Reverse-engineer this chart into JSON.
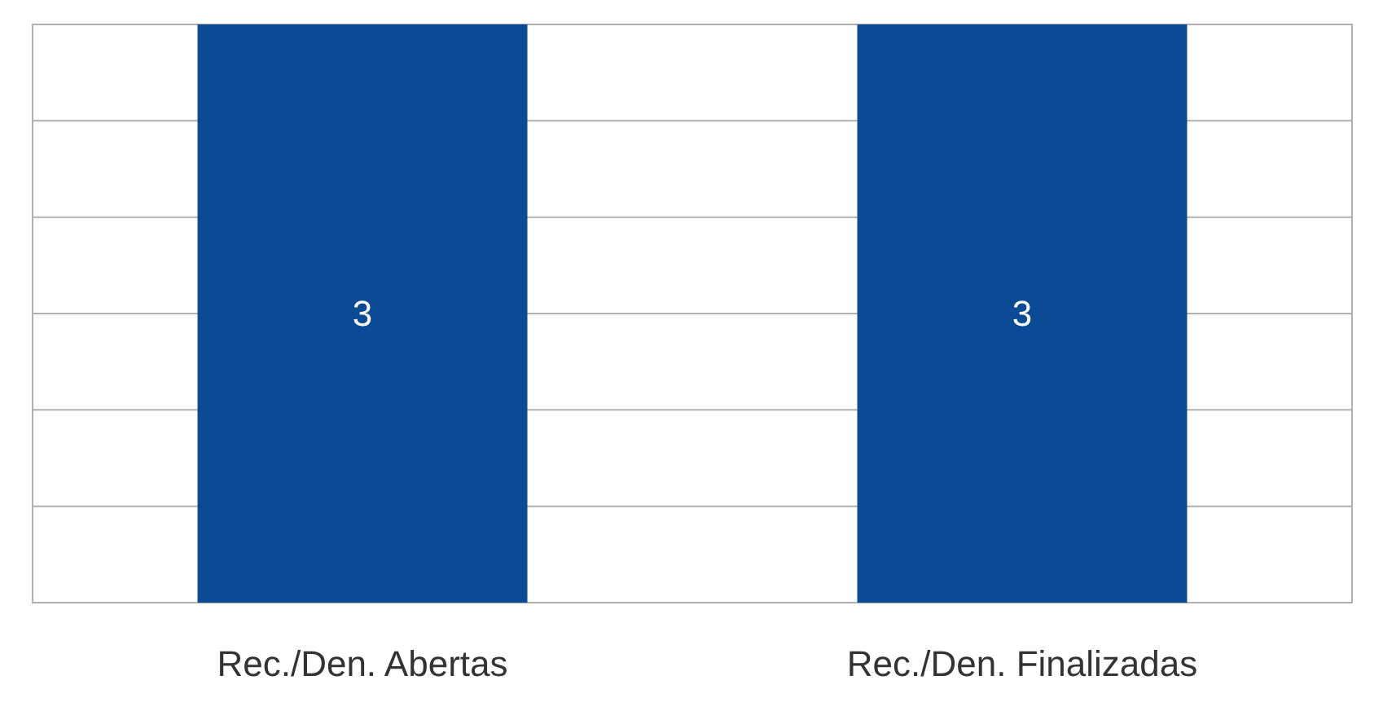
{
  "chart_data": {
    "type": "bar",
    "categories": [
      "Rec./Den. Abertas",
      "Rec./Den. Finalizadas"
    ],
    "values": [
      3,
      3
    ],
    "color": "#0b4a94",
    "data_labels": true,
    "grid": "y",
    "tick_labels": "x",
    "ylim": [
      0,
      3
    ],
    "yticks": [
      {
        "value": 0,
        "label": null
      },
      {
        "value": 0.5,
        "label": null
      },
      {
        "value": 1,
        "label": null
      },
      {
        "value": 1.5,
        "label": null
      },
      {
        "value": 2,
        "label": null
      },
      {
        "value": 2.5,
        "label": null
      },
      {
        "value": 3,
        "label": null
      }
    ]
  }
}
